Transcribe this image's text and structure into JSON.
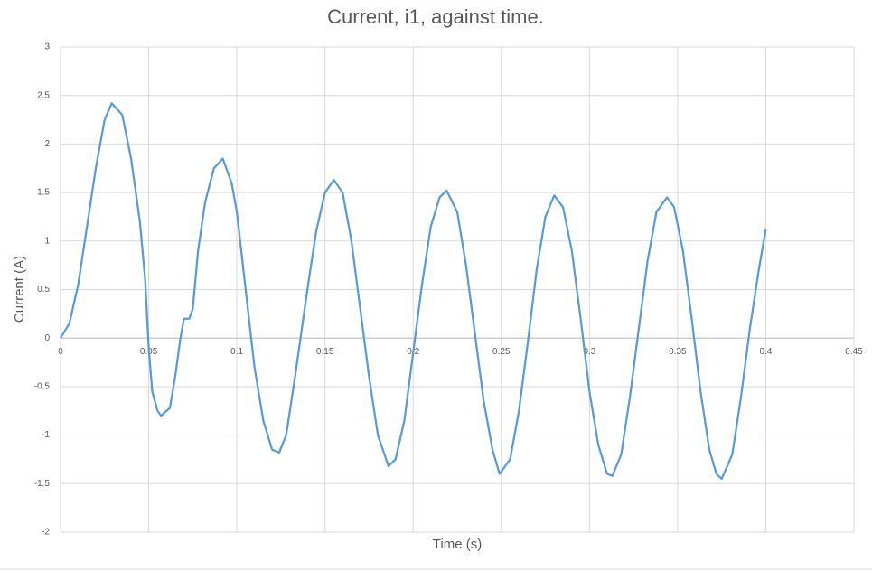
{
  "chart_data": {
    "type": "line",
    "title": "Current, i1, against time.",
    "x_label": "Time (s)",
    "y_label": "Current (A)",
    "x": [
      0,
      0.005,
      0.01,
      0.015,
      0.02,
      0.025,
      0.029,
      0.035,
      0.04,
      0.045,
      0.048,
      0.05,
      0.052,
      0.055,
      0.057,
      0.062,
      0.065,
      0.068,
      0.07,
      0.073,
      0.075,
      0.078,
      0.082,
      0.087,
      0.092,
      0.097,
      0.1,
      0.105,
      0.11,
      0.115,
      0.12,
      0.124,
      0.128,
      0.133,
      0.14,
      0.145,
      0.15,
      0.155,
      0.16,
      0.165,
      0.17,
      0.175,
      0.18,
      0.186,
      0.19,
      0.195,
      0.2,
      0.205,
      0.21,
      0.215,
      0.219,
      0.225,
      0.23,
      0.235,
      0.24,
      0.245,
      0.249,
      0.255,
      0.26,
      0.265,
      0.27,
      0.275,
      0.28,
      0.285,
      0.29,
      0.295,
      0.3,
      0.305,
      0.31,
      0.313,
      0.318,
      0.323,
      0.328,
      0.333,
      0.338,
      0.344,
      0.348,
      0.353,
      0.358,
      0.363,
      0.368,
      0.372,
      0.375,
      0.381,
      0.386,
      0.391,
      0.396,
      0.4
    ],
    "series": [
      {
        "name": "i1",
        "color": "#5b9bd5",
        "values": [
          0,
          0.15,
          0.55,
          1.15,
          1.75,
          2.25,
          2.42,
          2.3,
          1.85,
          1.2,
          0.6,
          -0.1,
          -0.55,
          -0.75,
          -0.8,
          -0.72,
          -0.4,
          0.0,
          0.2,
          0.2,
          0.3,
          0.9,
          1.4,
          1.75,
          1.85,
          1.6,
          1.3,
          0.5,
          -0.3,
          -0.85,
          -1.15,
          -1.18,
          -1.0,
          -0.4,
          0.5,
          1.1,
          1.5,
          1.63,
          1.5,
          1.0,
          0.3,
          -0.4,
          -1.0,
          -1.32,
          -1.25,
          -0.85,
          -0.15,
          0.55,
          1.15,
          1.45,
          1.52,
          1.3,
          0.75,
          0.05,
          -0.65,
          -1.15,
          -1.4,
          -1.25,
          -0.75,
          -0.05,
          0.7,
          1.25,
          1.47,
          1.35,
          0.9,
          0.2,
          -0.55,
          -1.1,
          -1.4,
          -1.42,
          -1.2,
          -0.6,
          0.1,
          0.8,
          1.3,
          1.45,
          1.35,
          0.9,
          0.2,
          -0.55,
          -1.15,
          -1.4,
          -1.45,
          -1.2,
          -0.6,
          0.1,
          0.7,
          1.12
        ]
      }
    ],
    "xlim": [
      0,
      0.45
    ],
    "xticks": [
      0,
      0.05,
      0.1,
      0.15,
      0.2,
      0.25,
      0.3,
      0.35,
      0.4,
      0.45
    ],
    "ylim": [
      -2,
      3
    ],
    "yticks": [
      -2,
      -1.5,
      -1,
      -0.5,
      0,
      0.5,
      1,
      1.5,
      2,
      2.5,
      3
    ],
    "grid": true
  }
}
